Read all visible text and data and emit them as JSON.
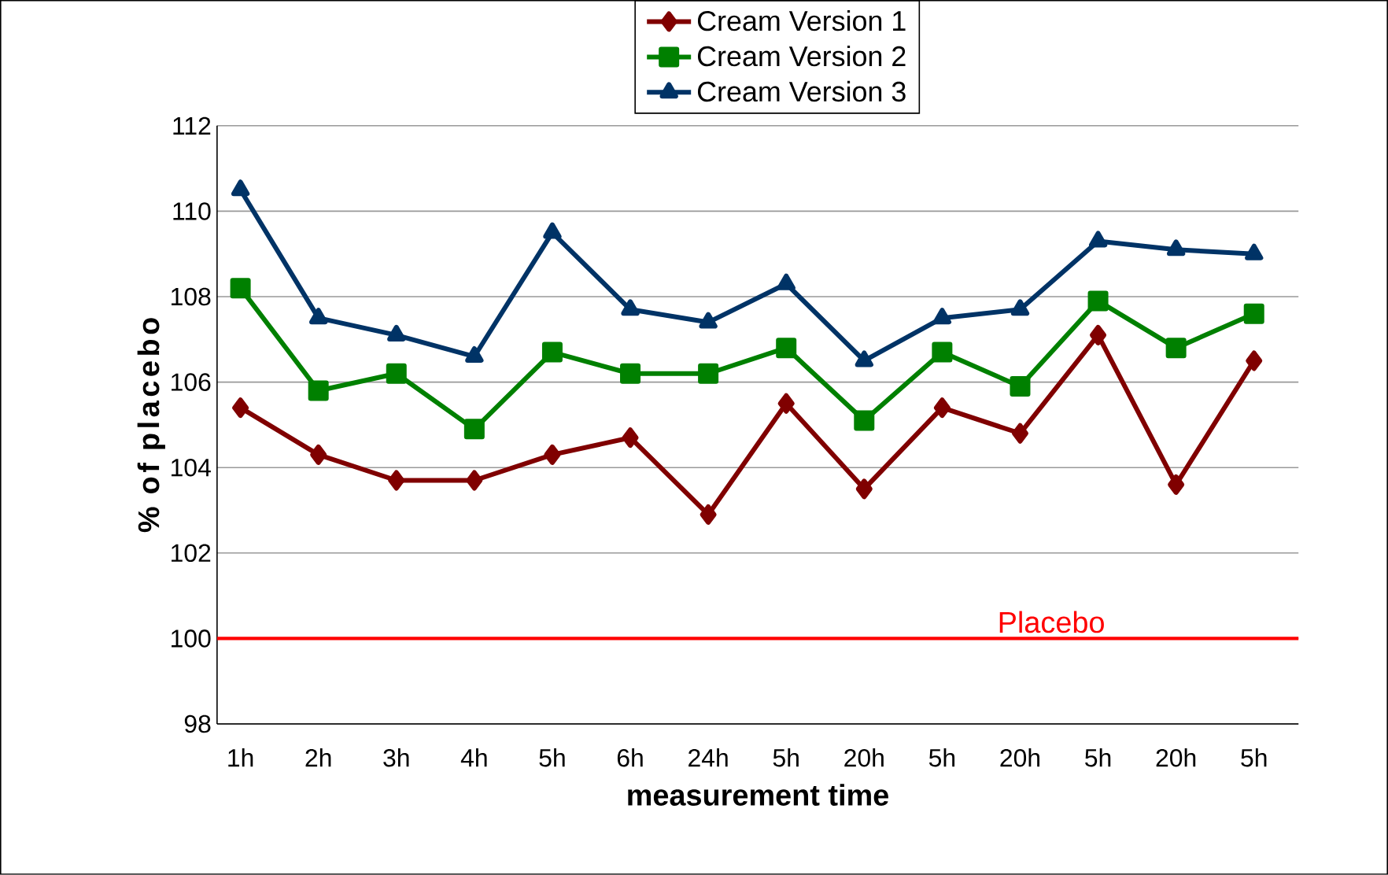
{
  "chart_data": {
    "type": "line",
    "xlabel": "measurement time",
    "ylabel": "% of placebo",
    "categories": [
      "1h",
      "2h",
      "3h",
      "4h",
      "5h",
      "6h",
      "24h",
      "5h",
      "20h",
      "5h",
      "20h",
      "5h",
      "20h",
      "5h"
    ],
    "series": [
      {
        "name": "Cream Version 1",
        "color": "#800000",
        "marker": "diamond",
        "values": [
          105.4,
          104.3,
          103.7,
          103.7,
          104.3,
          104.7,
          102.9,
          105.5,
          103.5,
          105.4,
          104.8,
          107.1,
          103.6,
          106.5
        ]
      },
      {
        "name": "Cream Version 2",
        "color": "#008000",
        "marker": "square",
        "values": [
          108.2,
          105.8,
          106.2,
          104.9,
          106.7,
          106.2,
          106.2,
          106.8,
          105.1,
          106.7,
          105.9,
          107.9,
          106.8,
          107.6
        ]
      },
      {
        "name": "Cream Version 3",
        "color": "#003366",
        "marker": "triangle",
        "values": [
          110.5,
          107.5,
          107.1,
          106.6,
          109.5,
          107.7,
          107.4,
          108.3,
          106.5,
          107.5,
          107.7,
          109.3,
          109.1,
          109.0
        ]
      }
    ],
    "ylim": [
      98,
      112
    ],
    "yticks": [
      98,
      100,
      102,
      104,
      106,
      108,
      110,
      112
    ],
    "ref_lines": [
      {
        "axis": "y",
        "value": 100,
        "label": "Placebo",
        "color": "#ff0000"
      }
    ],
    "grid": "y",
    "legend": "top",
    "line_style": "solid"
  }
}
